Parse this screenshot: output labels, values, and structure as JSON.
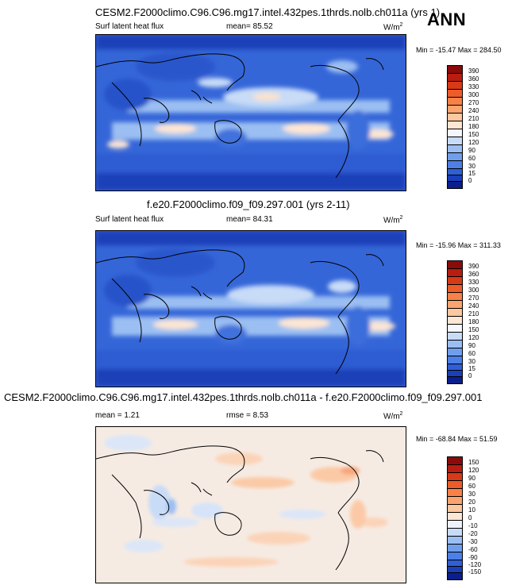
{
  "season": "ANN",
  "panels": [
    {
      "title": "CESM2.F2000climo.C96.C96.mg17.intel.432pes.1thrds.nolb.ch011a (yrs 1)",
      "variable": "Surf latent heat flux",
      "stat_text": "mean=  85.52",
      "rmse_text": "",
      "units": "W/m",
      "units_exp": "2",
      "minmax": "Min = -15.47 Max = 284.50",
      "colorbar_labels": [
        "390",
        "360",
        "330",
        "300",
        "270",
        "240",
        "210",
        "180",
        "150",
        "120",
        "90",
        "60",
        "30",
        "15",
        "0"
      ],
      "colorbar_colors": [
        "#8b0a0a",
        "#b91c10",
        "#d73a16",
        "#ec5d2a",
        "#f78147",
        "#fba46f",
        "#fdc7a0",
        "#fde6d3",
        "#f4f7fd",
        "#c8dbf7",
        "#9bbff2",
        "#6f9fec",
        "#4d7fe6",
        "#2f5fd6",
        "#1a3fb8",
        "#0b1f8c"
      ]
    },
    {
      "title": "f.e20.F2000climo.f09_f09.297.001 (yrs 2-11)",
      "variable": "Surf latent heat flux",
      "stat_text": "mean=  84.31",
      "rmse_text": "",
      "units": "W/m",
      "units_exp": "2",
      "minmax": "Min = -15.96 Max = 311.33",
      "colorbar_labels": [
        "390",
        "360",
        "330",
        "300",
        "270",
        "240",
        "210",
        "180",
        "150",
        "120",
        "90",
        "60",
        "30",
        "15",
        "0"
      ],
      "colorbar_colors": [
        "#8b0a0a",
        "#b91c10",
        "#d73a16",
        "#ec5d2a",
        "#f78147",
        "#fba46f",
        "#fdc7a0",
        "#fde6d3",
        "#f4f7fd",
        "#c8dbf7",
        "#9bbff2",
        "#6f9fec",
        "#4d7fe6",
        "#2f5fd6",
        "#1a3fb8",
        "#0b1f8c"
      ]
    },
    {
      "title": "CESM2.F2000climo.C96.C96.mg17.intel.432pes.1thrds.nolb.ch011a - f.e20.F2000climo.f09_f09.297.001",
      "variable": "",
      "stat_text": "mean =  1.21",
      "rmse_text": "rmse =  8.53",
      "units": "W/m",
      "units_exp": "2",
      "minmax": "Min = -68.84 Max = 51.59",
      "colorbar_labels": [
        "150",
        "120",
        "90",
        "60",
        "30",
        "20",
        "10",
        "0",
        "-10",
        "-20",
        "-30",
        "-60",
        "-90",
        "-120",
        "-150"
      ],
      "colorbar_colors": [
        "#8b0a0a",
        "#b91c10",
        "#d73a16",
        "#ec5d2a",
        "#f78147",
        "#fba46f",
        "#fdc7a0",
        "#fde6d3",
        "#eef3fb",
        "#c8dbf7",
        "#9bbff2",
        "#6f9fec",
        "#4d7fe6",
        "#2f5fd6",
        "#1a3fb8",
        "#0b1f8c"
      ]
    }
  ]
}
